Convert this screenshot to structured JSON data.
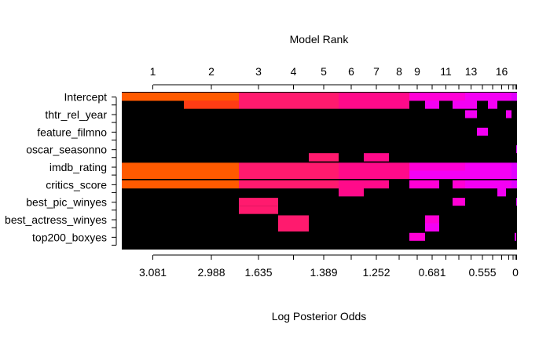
{
  "chart_data": {
    "type": "heatmap",
    "title": "Model Rank",
    "xlabel": "Log Posterior Odds",
    "ylabel": "",
    "top_axis_ticks": [
      "1",
      "2",
      "3",
      "4",
      "5",
      "6",
      "7",
      "8",
      "9",
      "11",
      "13",
      "16"
    ],
    "bottom_axis_ticks": [
      "3.081",
      "2.988",
      "1.635",
      "1.389",
      "1.252",
      "0.681",
      "0.555",
      "0"
    ],
    "variables": [
      "Intercept",
      "thtr_rel_year",
      "feature_filmno",
      "oscar_seasonno",
      "imdb_rating",
      "critics_score",
      "best_pic_winyes",
      "best_actress_winyes",
      "top200_boxyes"
    ],
    "row_labels": [
      "Intercept",
      "thtr_rel_year",
      "feature_filmno",
      "oscar_seasonno",
      "imdb_rating",
      "critics_score",
      "best_pic_winyes",
      "best_actress_winyes",
      "top200_boxyes"
    ],
    "background_color": "#000000",
    "colors": [
      "#ff5a00",
      "#ff3c14",
      "#ff1a6e",
      "#ff0a8a",
      "#ff00b4",
      "#ff00d6",
      "#f400f4",
      "#e100ff"
    ],
    "note_model_inclusion": [
      {
        "variable": "Intercept",
        "models": [
          1,
          2,
          3,
          4,
          5,
          6,
          7,
          8,
          9,
          10,
          11,
          12,
          13,
          14,
          15,
          16,
          17,
          18,
          19,
          20
        ]
      },
      {
        "variable": "imdb_rating",
        "models": [
          1,
          2,
          3,
          4,
          5,
          6,
          7,
          8,
          9,
          10,
          11,
          12,
          13,
          14,
          15,
          16,
          17,
          18,
          19,
          20
        ]
      },
      {
        "variable": "critics_score",
        "models": [
          1,
          2,
          3,
          4,
          5,
          6,
          7,
          9,
          10,
          12,
          13,
          14,
          15,
          16,
          17,
          18,
          19,
          20
        ]
      }
    ]
  }
}
